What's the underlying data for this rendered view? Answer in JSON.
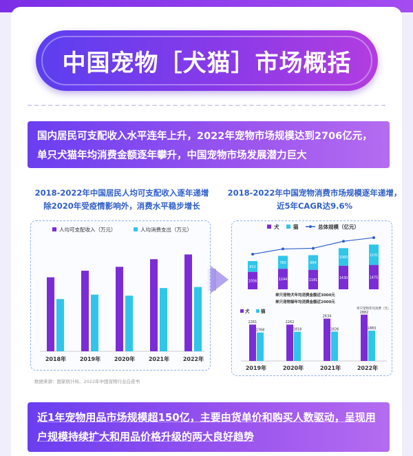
{
  "header": {
    "title": "中国宠物［犬猫］市场概括"
  },
  "callouts": {
    "top": "国内居民可支配收入水平连年上升，2022年宠物市场规模达到2706亿元，单只犬猫年均消费金额逐年攀升，中国宠物市场发展潜力巨大",
    "bottom": "近1年宠物用品市场规模超150亿，主要由货单价和购买人数驱动，呈现用户规模持续扩大和用品价格升级的两大良好趋势"
  },
  "source_note": "数据来源：国家统计局、2022年中国宠物行业白皮书",
  "colors": {
    "purple": "#7b2cd6",
    "cyan": "#2fc6ea",
    "line": "#2f5fc9"
  },
  "chart_data": [
    {
      "type": "bar",
      "title_lines": [
        "2018-2022年中国居民人均可支配收入逐年递增",
        "除2020年受疫情影响外，消费水平稳步增长"
      ],
      "categories": [
        "2018年",
        "2019年",
        "2020年",
        "2021年",
        "2022年"
      ],
      "series": [
        {
          "name": "人均可支配收入（万元）",
          "values": [
            2.82,
            3.07,
            3.22,
            3.51,
            3.69
          ]
        },
        {
          "name": "人均消费支出（万元）",
          "values": [
            1.99,
            2.16,
            2.12,
            2.41,
            2.45
          ]
        }
      ],
      "ylim": [
        0,
        4.2
      ]
    },
    {
      "type": "bar",
      "title_lines": [
        "2018-2022年中国宠物消费市场规模逐年递增，",
        "近5年CAGR达9.6%"
      ],
      "categories": [
        "2018年",
        "2019年",
        "2020年",
        "2021年",
        "2022年"
      ],
      "legend": [
        "犬",
        "猫",
        "总体规模（亿元）"
      ],
      "series": [
        {
          "name": "犬",
          "values": [
            1056,
            1244,
            1181,
            1430,
            1475
          ]
        },
        {
          "name": "猫",
          "values": [
            652,
            780,
            884,
            1060,
            1231
          ]
        }
      ],
      "totals": [
        1708,
        2024,
        2065,
        2490,
        2706
      ],
      "ylim": [
        0,
        3000
      ]
    },
    {
      "type": "bar",
      "notes": [
        "单只宠物犬年均消费金额近3000元",
        "单只宠物猫年均消费金额近2000元"
      ],
      "unit_label": "单只宠物年均消费（元）",
      "legend": [
        "犬",
        "猫"
      ],
      "categories": [
        "2019年",
        "2020年",
        "2021年",
        "2022年"
      ],
      "series": [
        {
          "name": "犬",
          "values": [
            2261,
            2262,
            2634,
            2882
          ]
        },
        {
          "name": "猫",
          "values": [
            1768,
            1818,
            1826,
            1883
          ]
        }
      ],
      "ylim": [
        0,
        3000
      ]
    }
  ]
}
